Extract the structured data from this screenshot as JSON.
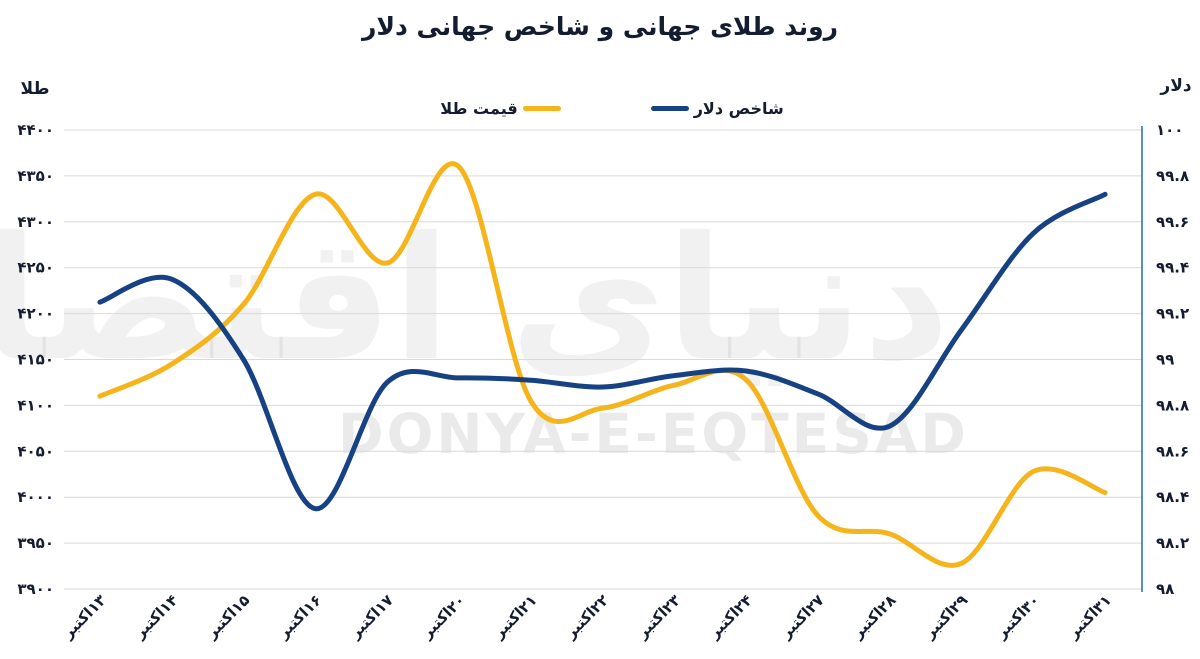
{
  "title": "روند طلای جهانی و شاخص جهانی دلار",
  "legend": {
    "gold_label": "قیمت طلا",
    "dollar_label": "شاخص دلار"
  },
  "axes": {
    "left_title": "طلا",
    "right_title": "دلار"
  },
  "watermark": {
    "persian": "دنیای اقتصاد",
    "latin": "DONYA-E-EQTESAD"
  },
  "colors": {
    "gold": "#F6B41C",
    "dollar": "#164283",
    "grid": "#D9D9D9",
    "text": "#141c30",
    "right_spine": "#2E74B5"
  },
  "chart_data": {
    "type": "line",
    "title": "روند طلای جهانی و شاخص جهانی دلار",
    "grid": true,
    "legend_position": "top",
    "categories": [
      "۱۳اکتبر",
      "۱۴اکتبر",
      "۱۵اکتبر",
      "۱۶اکتبر",
      "۱۷اکتبر",
      "۲۰اکتبر",
      "۲۱اکتبر",
      "۲۲اکتبر",
      "۲۳اکتبر",
      "۲۴اکتبر",
      "۲۷اکتبر",
      "۲۸اکتبر",
      "۲۹اکتبر",
      "۳۰اکتبر",
      "۳۱اکتبر"
    ],
    "series": [
      {
        "name": "قیمت طلا",
        "axis": "left",
        "color": "#F6B41C",
        "values": [
          4110,
          4145,
          4210,
          4330,
          4255,
          4360,
          4105,
          4097,
          4122,
          4128,
          3980,
          3960,
          3928,
          4028,
          4005
        ]
      },
      {
        "name": "شاخص دلار",
        "axis": "right",
        "color": "#164283",
        "values": [
          99.25,
          99.35,
          99.0,
          98.35,
          98.9,
          98.92,
          98.91,
          98.88,
          98.93,
          98.95,
          98.85,
          98.71,
          99.13,
          99.55,
          99.72
        ]
      }
    ],
    "left_axis": {
      "title": "طلا",
      "min": 3900,
      "max": 4400,
      "step": 50,
      "tick_labels_top_to_bottom": [
        "۴۴۰۰",
        "۴۳۵۰",
        "۴۳۰۰",
        "۴۲۵۰",
        "۴۲۰۰",
        "۴۱۵۰",
        "۴۱۰۰",
        "۴۰۵۰",
        "۴۰۰۰",
        "۳۹۵۰",
        "۳۹۰۰"
      ]
    },
    "right_axis": {
      "title": "دلار",
      "min": 98,
      "max": 100,
      "step": 0.2,
      "tick_labels_top_to_bottom": [
        "۱۰۰",
        "۹۹.۸",
        "۹۹.۶",
        "۹۹.۴",
        "۹۹.۲",
        "۹۹",
        "۹۸.۸",
        "۹۸.۶",
        "۹۸.۴",
        "۹۸.۲",
        "۹۸"
      ]
    }
  }
}
